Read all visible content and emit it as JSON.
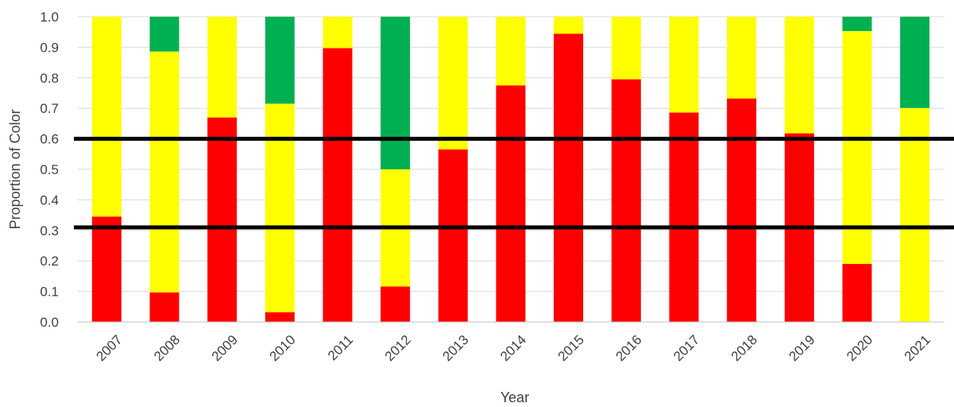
{
  "chart_data": {
    "type": "bar",
    "stacked": true,
    "categories": [
      "2007",
      "2008",
      "2009",
      "2010",
      "2011",
      "2012",
      "2013",
      "2014",
      "2015",
      "2016",
      "2017",
      "2018",
      "2019",
      "2020",
      "2021"
    ],
    "series": [
      {
        "color": "#ff0000",
        "values": [
          0.345,
          0.097,
          0.67,
          0.032,
          0.897,
          0.116,
          0.565,
          0.775,
          0.944,
          0.795,
          0.686,
          0.732,
          0.618,
          0.19,
          0.0
        ]
      },
      {
        "color": "#ffff00",
        "values": [
          0.655,
          0.789,
          0.33,
          0.683,
          0.103,
          0.384,
          0.435,
          0.225,
          0.056,
          0.205,
          0.314,
          0.268,
          0.382,
          0.763,
          0.701
        ]
      },
      {
        "color": "#00b050",
        "values": [
          0.0,
          0.114,
          0.0,
          0.285,
          0.0,
          0.5,
          0.0,
          0.0,
          0.0,
          0.0,
          0.0,
          0.0,
          0.0,
          0.047,
          0.299
        ]
      }
    ],
    "reference_lines": [
      0.6,
      0.31
    ],
    "reference_line_color": "#000000",
    "ylim": [
      0,
      1.0
    ],
    "yticks": [
      "0.0",
      "0.1",
      "0.2",
      "0.3",
      "0.4",
      "0.5",
      "0.6",
      "0.7",
      "0.8",
      "0.9",
      "1.0"
    ],
    "ytick_values": [
      0,
      0.1,
      0.2,
      0.3,
      0.4,
      0.5,
      0.6,
      0.7,
      0.8,
      0.9,
      1.0
    ],
    "xlabel": "Year",
    "ylabel": "Proportion of Color",
    "grid": true,
    "legend": "none"
  }
}
